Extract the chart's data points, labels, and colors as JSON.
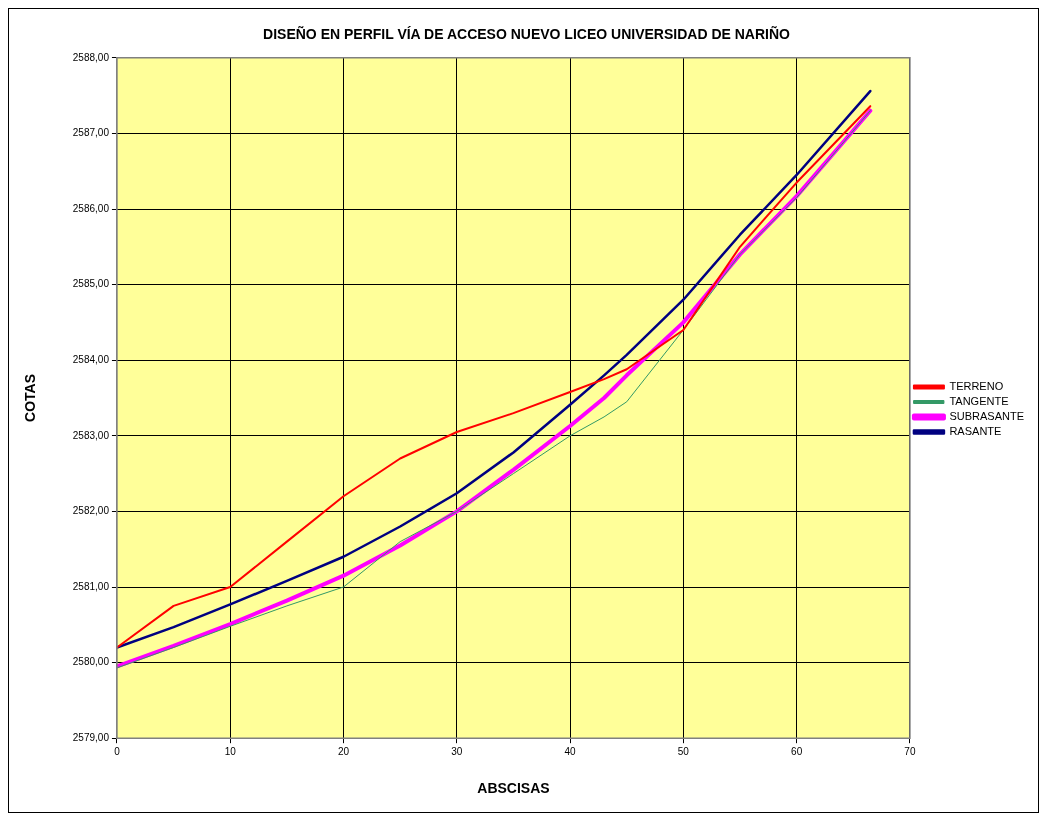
{
  "chart_data": {
    "type": "line",
    "title": "DISEÑO EN PERFIL VÍA DE ACCESO NUEVO LICEO UNIVERSIDAD DE NARIÑO",
    "xlabel": "ABSCISAS",
    "ylabel": "COTAS",
    "x": [
      0,
      5,
      10,
      15,
      20,
      25,
      30,
      35,
      40,
      43,
      45,
      50,
      55,
      60,
      66.5
    ],
    "series": [
      {
        "name": "TERRENO",
        "color": "#ff0000",
        "values": [
          2580.2,
          2580.75,
          2581.0,
          2581.6,
          2582.2,
          2582.7,
          2583.05,
          2583.3,
          2583.58,
          2583.75,
          2583.88,
          2584.4,
          2585.5,
          2586.35,
          2587.36
        ]
      },
      {
        "name": "TANGENTE",
        "color": "#339966",
        "values": [
          2579.93,
          2580.2,
          2580.48,
          2580.75,
          2581.0,
          2581.6,
          2582.0,
          2582.5,
          2583.0,
          2583.25,
          2583.45,
          2584.4,
          2585.4,
          2586.15,
          2587.3
        ]
      },
      {
        "name": "SUBRASANTE",
        "color": "#ff00ff",
        "values": [
          2579.95,
          2580.22,
          2580.51,
          2580.82,
          2581.15,
          2581.55,
          2582.0,
          2582.55,
          2583.13,
          2583.5,
          2583.8,
          2584.5,
          2585.4,
          2586.17,
          2587.3
        ]
      },
      {
        "name": "RASANTE",
        "color": "#000080",
        "values": [
          2580.2,
          2580.47,
          2580.77,
          2581.08,
          2581.4,
          2581.8,
          2582.24,
          2582.78,
          2583.41,
          2583.8,
          2584.07,
          2584.8,
          2585.66,
          2586.45,
          2587.56
        ]
      }
    ],
    "xlim": [
      0,
      70
    ],
    "xticks": [
      0,
      10,
      20,
      30,
      40,
      50,
      60,
      70
    ],
    "ylim": [
      2579,
      2588
    ],
    "yticks": [
      {
        "value": 2579,
        "label": "2579,00"
      },
      {
        "value": 2580,
        "label": "2580,00"
      },
      {
        "value": 2581,
        "label": "2581,00"
      },
      {
        "value": 2582,
        "label": "2582,00"
      },
      {
        "value": 2583,
        "label": "2583,00"
      },
      {
        "value": 2584,
        "label": "2584,00"
      },
      {
        "value": 2585,
        "label": "2585,00"
      },
      {
        "value": 2586,
        "label": "2586,00"
      },
      {
        "value": 2587,
        "label": "2587,00"
      },
      {
        "value": 2588,
        "label": "2588,00"
      }
    ],
    "grid": true,
    "legend": "right",
    "marker": "none",
    "line_style": "solid"
  }
}
